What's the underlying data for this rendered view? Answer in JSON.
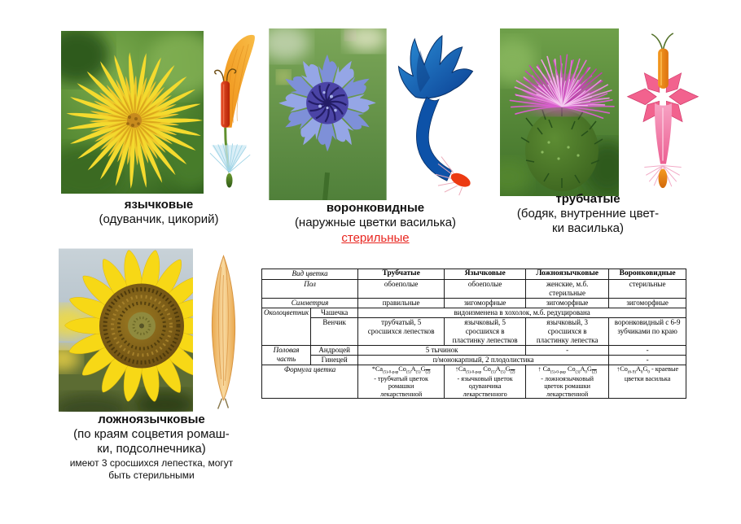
{
  "groups": {
    "ligulate": {
      "title": "язычковые",
      "subtitle": "(одуванчик, цикорий)"
    },
    "funnel": {
      "title": "воронковидные",
      "subtitle": "(наружные цветки василька)",
      "note": "стерильные"
    },
    "tubular": {
      "title": "трубчатые",
      "subtitle": "(бодяк, внутренние цвет-\nки василька)"
    },
    "false_ligulate": {
      "title": "ложноязычковые",
      "subtitle": "(по краям соцветия ромаш-\nки, подсолнечника)",
      "note": "имеют 3 сросшихся лепестка, могут\nбыть стерильными"
    }
  },
  "colors": {
    "sterile_red": "#e8251f"
  },
  "table": {
    "header": {
      "label": "Вид цветка",
      "tubular": "Трубчатые",
      "ligulate": "Язычковые",
      "false_ligulate": "Ложноязычковые",
      "funnel": "Воронковидные"
    },
    "sex": {
      "label": "Пол",
      "tubular": "обоеполые",
      "ligulate": "обоеполые",
      "false_ligulate": "женские, м.б.\nстерильные",
      "funnel": "стерильные"
    },
    "symmetry": {
      "label": "Симметрия",
      "tubular": "правильные",
      "ligulate": "зигоморфные",
      "false_ligulate": "зигоморфные",
      "funnel": "зигоморфные"
    },
    "perianth": {
      "label": "Околоцветник",
      "calyx": {
        "label": "Чашечка",
        "all": "видоизменена в хохолок, м.б. редуцирована"
      },
      "corolla": {
        "label": "Венчик",
        "tubular": "трубчатый, 5\nсросшихся лепестков",
        "ligulate": "язычковый, 5\nсросшихся в\nпластинку лепестков",
        "false_ligulate": "язычковый, 3\nсросшихся в\nпластинку лепестка",
        "funnel": "воронковидный с 6-9\nзубчиками по краю"
      }
    },
    "sexual_part": {
      "label": "Половая часть",
      "androecium": {
        "label": "Андроцей",
        "span2": "5 тычинок",
        "false_ligulate": "-",
        "funnel": "-"
      },
      "gynoecium": {
        "label": "Гинецей",
        "span3": "п/монокарпный, 2 плодолистика",
        "funnel": "-"
      }
    },
    "formula": {
      "label": "Формула цветка",
      "tubular": {
        "segments": [
          {
            "t": "*Ca"
          },
          {
            "t": "(5)-0-pap",
            "sub": true
          },
          {
            "t": "Co"
          },
          {
            "t": "(5)",
            "sub": true
          },
          {
            "t": "A"
          },
          {
            "t": "(5)",
            "sub": true
          },
          {
            "t": "G"
          },
          {
            "t": "(2)",
            "sub": true,
            "over": true
          }
        ],
        "desc": "- трубчатый цветок\nромашки\nлекарственной"
      },
      "ligulate": {
        "segments": [
          {
            "t": "↑Ca"
          },
          {
            "t": "(5)-0-pap",
            "sub": true
          },
          {
            "t": " Co"
          },
          {
            "t": "(5)",
            "sub": true
          },
          {
            "t": "A"
          },
          {
            "t": "(5)",
            "sub": true
          },
          {
            "t": "G"
          },
          {
            "t": "(2)",
            "sub": true,
            "over": true
          }
        ],
        "desc": "- язычковый цветок\nодуванчика\nлекарственного"
      },
      "false_ligulate": {
        "segments": [
          {
            "t": "↑ Ca"
          },
          {
            "t": "(5)-0-pap",
            "sub": true
          },
          {
            "t": " Co"
          },
          {
            "t": "(3)",
            "sub": true
          },
          {
            "t": "A"
          },
          {
            "t": "0",
            "sub": true
          },
          {
            "t": "G"
          },
          {
            "t": "(2)",
            "sub": true,
            "over": true
          }
        ],
        "desc": "- ложноязычковый\nцветок ромашки\nлекарственной"
      },
      "funnel": {
        "segments": [
          {
            "t": "↑Co"
          },
          {
            "t": "(6-9)",
            "sub": true
          },
          {
            "t": "A"
          },
          {
            "t": "0",
            "sub": true
          },
          {
            "t": "G"
          },
          {
            "t": "0",
            "sub": true
          }
        ],
        "desc": " - краевые\nцветки василька"
      }
    }
  }
}
